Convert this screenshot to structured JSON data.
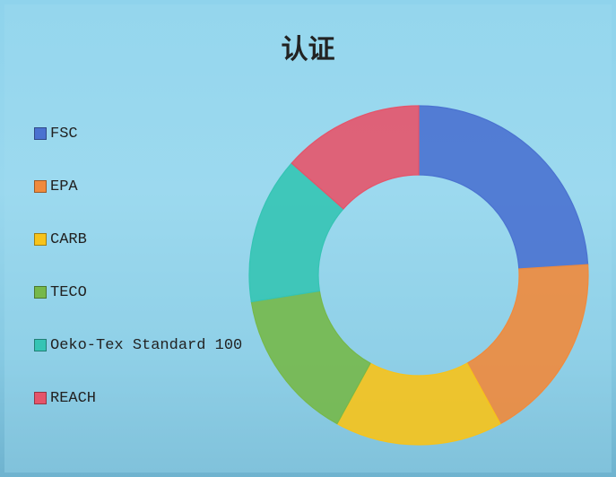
{
  "chart_data": {
    "type": "donut",
    "title": "认证",
    "categories": [
      "FSC",
      "EPA",
      "CARB",
      "TECO",
      "Oeko-Tex Standard 100",
      "REACH"
    ],
    "values": [
      24,
      18,
      16,
      14.5,
      14,
      13.5
    ],
    "colors": [
      "#4a72d0",
      "#f08a3c",
      "#f7c31a",
      "#76b84a",
      "#35c4b4",
      "#e5546a"
    ],
    "legend": "left"
  }
}
